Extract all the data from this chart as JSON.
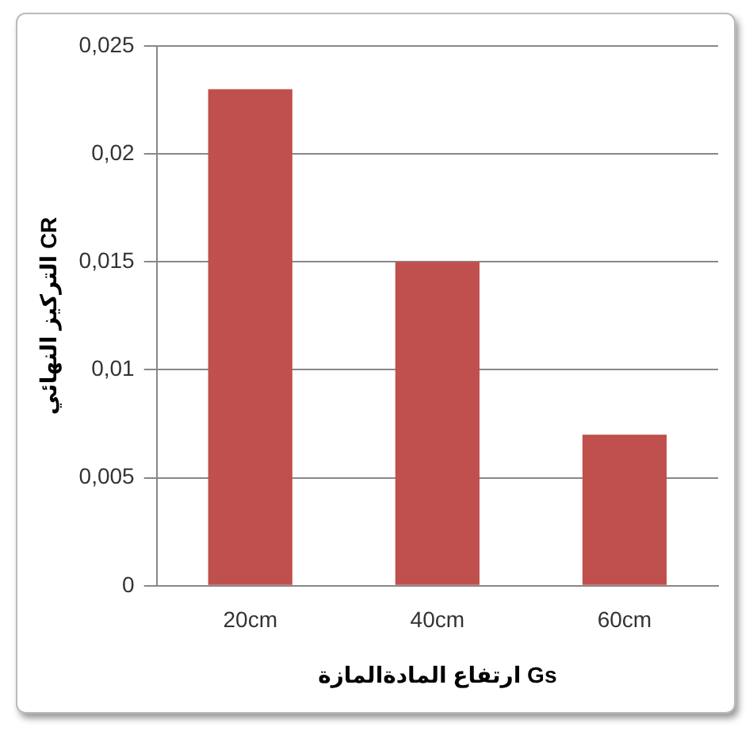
{
  "chart_data": {
    "type": "bar",
    "xlabel": "ارتفاع المادةالمازة Gs",
    "ylabel": "التركيز النهائي CR",
    "categories": [
      "20cm",
      "40cm",
      "60cm"
    ],
    "values": [
      0.023,
      0.015,
      0.007
    ],
    "color": "#c0504d",
    "ylim": [
      0,
      0.025
    ],
    "yticks": [
      {
        "value": 0,
        "label": "0"
      },
      {
        "value": 0.005,
        "label": "0,005"
      },
      {
        "value": 0.01,
        "label": "0,01"
      },
      {
        "value": 0.015,
        "label": "0,015"
      },
      {
        "value": 0.02,
        "label": "0,02"
      },
      {
        "value": 0.025,
        "label": "0,025"
      }
    ],
    "grid": "y",
    "legend": false
  }
}
